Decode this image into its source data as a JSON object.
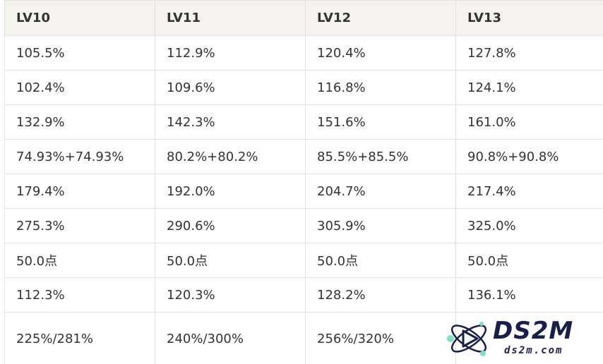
{
  "table": {
    "headers": [
      "LV10",
      "LV11",
      "LV12",
      "LV13"
    ],
    "rows": [
      [
        "105.5%",
        "112.9%",
        "120.4%",
        "127.8%"
      ],
      [
        "102.4%",
        "109.6%",
        "116.8%",
        "124.1%"
      ],
      [
        "132.9%",
        "142.3%",
        "151.6%",
        "161.0%"
      ],
      [
        "74.93%+74.93%",
        "80.2%+80.2%",
        "85.5%+85.5%",
        "90.8%+90.8%"
      ],
      [
        "179.4%",
        "192.0%",
        "204.7%",
        "217.4%"
      ],
      [
        "275.3%",
        "290.6%",
        "305.9%",
        "325.0%"
      ],
      [
        "50.0点",
        "50.0点",
        "50.0点",
        "50.0点"
      ],
      [
        "112.3%",
        "120.3%",
        "128.2%",
        "136.1%"
      ],
      [
        "225%/281%",
        "240%/300%",
        "256%/320%",
        ""
      ]
    ]
  },
  "watermark": {
    "title": "DS2M",
    "subtitle": "ds2m.com",
    "icon": "atom-logo-icon"
  }
}
